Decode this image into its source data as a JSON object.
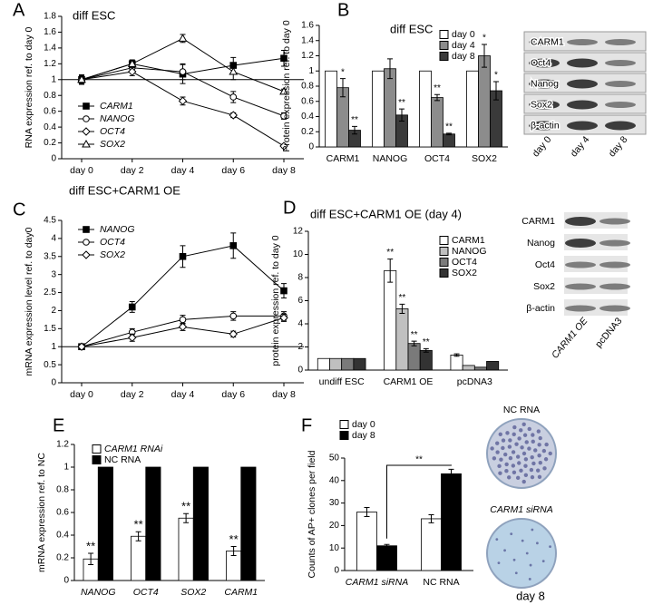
{
  "chart_data": [
    {
      "type": "line",
      "panel_label": "A",
      "title": "diff ESC",
      "ylabel": "RNA expression ref. to day 0",
      "categories": [
        "day 0",
        "day 2",
        "day 4",
        "day 6",
        "day 8"
      ],
      "ylim": [
        0,
        1.8
      ],
      "yticks": [
        0,
        0.2,
        0.4,
        0.6,
        0.8,
        1,
        1.2,
        1.4,
        1.6,
        1.8
      ],
      "reference_line": 1,
      "legend": "lower left",
      "series": [
        {
          "name": "CARM1",
          "marker": "square",
          "color": "#000",
          "values": [
            1.0,
            1.2,
            1.07,
            1.18,
            1.27
          ],
          "errors": [
            0.06,
            0.05,
            0.12,
            0.1,
            0.1
          ]
        },
        {
          "name": "NANOG",
          "marker": "circle",
          "color": "#000",
          "values": [
            1.0,
            1.15,
            1.1,
            0.78,
            0.54
          ],
          "errors": [
            0.05,
            0.05,
            0.1,
            0.07,
            0.04
          ]
        },
        {
          "name": "OCT4",
          "marker": "diamond",
          "color": "#000",
          "values": [
            1.0,
            1.1,
            0.73,
            0.55,
            0.16
          ],
          "errors": [
            0.05,
            0.05,
            0.05,
            0.03,
            0.02
          ]
        },
        {
          "name": "SOX2",
          "marker": "triangle",
          "color": "#000",
          "values": [
            1.0,
            1.2,
            1.52,
            1.1,
            0.85
          ],
          "errors": [
            0.05,
            0.04,
            0.05,
            0.1,
            0.03
          ]
        }
      ]
    },
    {
      "type": "bar",
      "panel_label": "B",
      "title": "diff ESC",
      "ylabel": "Protein expression ref. to day 0",
      "categories": [
        "CARM1",
        "NANOG",
        "OCT4",
        "SOX2"
      ],
      "ylim": [
        0,
        1.6
      ],
      "yticks": [
        0,
        0.2,
        0.4,
        0.6,
        0.8,
        1,
        1.2,
        1.4,
        1.6
      ],
      "legend": "upper right",
      "series": [
        {
          "name": "day 0",
          "color": "#ffffff",
          "values": [
            1,
            1,
            1,
            1
          ],
          "errors": [
            null,
            null,
            null,
            null
          ],
          "significance": [
            null,
            null,
            null,
            null
          ]
        },
        {
          "name": "day 4",
          "color": "#8c8c8c",
          "values": [
            0.78,
            1.03,
            0.65,
            1.2
          ],
          "errors": [
            0.12,
            0.13,
            0.04,
            0.15
          ],
          "significance": [
            "*",
            null,
            "**",
            "*"
          ]
        },
        {
          "name": "day 8",
          "color": "#3a3a3a",
          "values": [
            0.22,
            0.42,
            0.17,
            0.74
          ],
          "errors": [
            0.05,
            0.08,
            0.01,
            0.12
          ],
          "significance": [
            "**",
            "**",
            "**",
            "*"
          ]
        }
      ]
    },
    {
      "type": "line",
      "panel_label": "C",
      "title": "diff ESC+CARM1 OE",
      "ylabel": "mRNA expression level  ref. to day0",
      "categories": [
        "day 0",
        "day 2",
        "day 4",
        "day 6",
        "day 8"
      ],
      "ylim": [
        0,
        4.5
      ],
      "yticks": [
        0,
        0.5,
        1,
        1.5,
        2,
        2.5,
        3,
        3.5,
        4,
        4.5
      ],
      "reference_line": 1,
      "legend": "upper left",
      "series": [
        {
          "name": "NANOG",
          "marker": "square",
          "color": "#000",
          "values": [
            1.0,
            2.1,
            3.5,
            3.8,
            2.55
          ],
          "errors": [
            0.05,
            0.15,
            0.3,
            0.35,
            0.2
          ]
        },
        {
          "name": "OCT4",
          "marker": "circle",
          "color": "#000",
          "values": [
            1.0,
            1.4,
            1.75,
            1.85,
            1.85
          ],
          "errors": [
            0.05,
            0.1,
            0.12,
            0.12,
            0.12
          ]
        },
        {
          "name": "SOX2",
          "marker": "diamond",
          "color": "#000",
          "values": [
            1.0,
            1.25,
            1.55,
            1.35,
            1.8
          ],
          "errors": [
            0.05,
            0.1,
            0.1,
            0.08,
            0.1
          ]
        }
      ]
    },
    {
      "type": "bar",
      "panel_label": "D",
      "title": "diff ESC+CARM1 OE (day 4)",
      "ylabel": "protein expression ref. to day 0",
      "categories": [
        "undiff ESC",
        "CARM1 OE",
        "pcDNA3"
      ],
      "ylim": [
        0,
        12
      ],
      "yticks": [
        0,
        2,
        4,
        6,
        8,
        10,
        12
      ],
      "legend": "upper right",
      "series": [
        {
          "name": "CARM1",
          "color": "#ffffff",
          "values": [
            1,
            8.6,
            1.3
          ],
          "errors": [
            null,
            1.0,
            0.1
          ],
          "significance": [
            null,
            "**",
            null
          ]
        },
        {
          "name": "NANOG",
          "color": "#c0c0c0",
          "values": [
            1,
            5.3,
            0.4
          ],
          "errors": [
            null,
            0.4,
            null
          ],
          "significance": [
            null,
            "**",
            null
          ]
        },
        {
          "name": "OCT4",
          "color": "#7a7a7a",
          "values": [
            1,
            2.3,
            0.25
          ],
          "errors": [
            null,
            0.2,
            null
          ],
          "significance": [
            null,
            "**",
            null
          ]
        },
        {
          "name": "SOX2",
          "color": "#333333",
          "values": [
            1,
            1.7,
            0.75
          ],
          "errors": [
            null,
            0.15,
            null
          ],
          "significance": [
            null,
            "**",
            null
          ]
        }
      ]
    },
    {
      "type": "bar",
      "panel_label": "E",
      "ylabel": "mRNA expression ref. to NC",
      "categories": [
        "NANOG",
        "OCT4",
        "SOX2",
        "CARM1"
      ],
      "ylim": [
        0,
        1.2
      ],
      "yticks": [
        0,
        0.2,
        0.4,
        0.6,
        0.8,
        1,
        1.2
      ],
      "legend": "upper left",
      "series": [
        {
          "name": "CARM1 RNAi",
          "color": "#ffffff",
          "values": [
            0.19,
            0.39,
            0.55,
            0.26
          ],
          "errors": [
            0.05,
            0.04,
            0.04,
            0.04
          ],
          "significance": [
            "**",
            "**",
            "**",
            "**"
          ]
        },
        {
          "name": "NC RNA",
          "color": "#000000",
          "values": [
            1,
            1,
            1,
            1
          ],
          "errors": [
            null,
            null,
            null,
            null
          ],
          "significance": [
            null,
            null,
            null,
            null
          ]
        }
      ]
    },
    {
      "type": "bar",
      "panel_label": "F",
      "ylabel": "Counts of AP+ clones per field",
      "categories": [
        "CARM1 siRNA",
        "NC RNA"
      ],
      "ylim": [
        0,
        50
      ],
      "yticks": [
        0,
        10,
        20,
        30,
        40,
        50
      ],
      "legend": "upper left",
      "comparison_label": "**",
      "series": [
        {
          "name": "day  0",
          "color": "#ffffff",
          "values": [
            26,
            23
          ],
          "errors": [
            2,
            1.8
          ],
          "significance": [
            null,
            null
          ]
        },
        {
          "name": "day 8",
          "color": "#000000",
          "values": [
            11,
            43
          ],
          "errors": [
            0.6,
            2
          ],
          "significance": [
            null,
            null
          ]
        }
      ]
    }
  ],
  "blots": [
    {
      "rows": [
        "CARM1",
        "Oct4",
        "Nanog",
        "Sox2",
        "β-actin"
      ],
      "lanes": [
        "day 0",
        "day 4",
        "day 8"
      ]
    },
    {
      "rows": [
        "CARM1",
        "Nanog",
        "Oct4",
        "Sox2",
        "β-actin"
      ],
      "lanes": [
        "CARM1 OE",
        "pcDNA3"
      ]
    }
  ],
  "images": {
    "labels": [
      "NC RNA",
      "CARM1 siRNA"
    ],
    "caption": "day 8"
  }
}
